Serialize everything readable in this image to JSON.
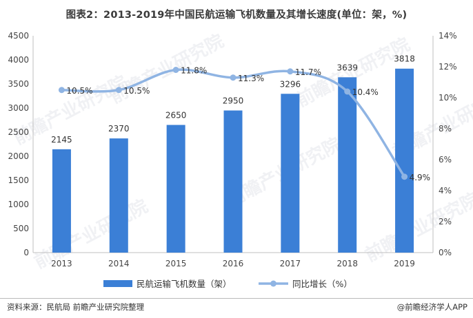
{
  "title": "图表2：2013-2019年中国民航运输飞机数量及其增长速度(单位：架，%)",
  "source": "资料来源：民航局 前瞻产业研究院整理",
  "brand": "@前瞻经济学人APP",
  "watermark": "前瞻产业研究院",
  "colors": {
    "bar": "#3b7fd6",
    "line": "#8fb4e3",
    "grid": "#d9d9d9",
    "axis": "#bfbfbf"
  },
  "chart_data": {
    "type": "bar",
    "categories": [
      "2013",
      "2014",
      "2015",
      "2016",
      "2017",
      "2018",
      "2019"
    ],
    "series": [
      {
        "name": "民航运输飞机数量（架）",
        "type": "bar",
        "axis": "left",
        "values": [
          2145,
          2370,
          2650,
          2950,
          3296,
          3639,
          3818
        ],
        "labels": [
          "2145",
          "2370",
          "2650",
          "2950",
          "3296",
          "3639",
          "3818"
        ]
      },
      {
        "name": "同比增长（%）",
        "type": "line",
        "axis": "right",
        "smooth": true,
        "values": [
          10.5,
          10.5,
          11.8,
          11.3,
          11.7,
          10.4,
          4.9
        ],
        "labels": [
          "10.5%",
          "10.5%",
          "11.8%",
          "11.3%",
          "11.7%",
          "10.4%",
          "4.9%"
        ]
      }
    ],
    "ylim": [
      0,
      4500
    ],
    "yticks": [
      "0",
      "500",
      "1000",
      "1500",
      "2000",
      "2500",
      "3000",
      "3500",
      "4000",
      "4500"
    ],
    "y2lim": [
      0,
      14
    ],
    "y2ticks": [
      "0%",
      "2%",
      "4%",
      "6%",
      "8%",
      "10%",
      "12%",
      "14%"
    ],
    "grid": false,
    "legend": "bottom"
  }
}
